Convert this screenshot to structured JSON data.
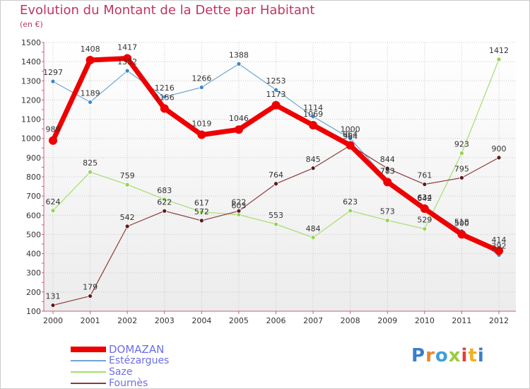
{
  "page": {
    "title": "Evolution du Montant de la Dette par Habitant",
    "subtitle": "(en €)",
    "logo": "Proxiti"
  },
  "colors": {
    "title": "#c0365f",
    "legend_text": "#6d6ee7",
    "axis": "#cc5b7c",
    "grid": "#c8c8c8",
    "plot_bg_top": "#ffffff",
    "plot_bg_bottom": "#ececec"
  },
  "chart_data": {
    "type": "line",
    "x": [
      "2000",
      "2001",
      "2002",
      "2003",
      "2004",
      "2005",
      "2006",
      "2007",
      "2008",
      "2009",
      "2010",
      "2011",
      "2012"
    ],
    "ylim": [
      100,
      1500
    ],
    "yticks": [
      100,
      200,
      300,
      400,
      500,
      600,
      700,
      800,
      900,
      1000,
      1100,
      1200,
      1300,
      1400,
      1500
    ],
    "grid": true,
    "legend_position": "bottom-left",
    "series": [
      {
        "name": "Estézargues",
        "color": "#6fa6d4",
        "marker": "#3d87c9",
        "width": 1.2,
        "radius": 3,
        "values": [
          1297,
          1189,
          1352,
          1216,
          1266,
          1388,
          1253,
          1114,
          1000,
          783,
          642,
          518,
          392
        ],
        "labels": [
          "1297",
          "1189",
          "1352",
          "1216",
          "1266",
          "1388",
          "1253",
          "1114",
          "1000",
          "783",
          "642",
          "518",
          "392"
        ]
      },
      {
        "name": "Saze",
        "color": "#a4de6f",
        "marker": "#8fd64f",
        "width": 1.2,
        "radius": 3,
        "values": [
          624,
          825,
          759,
          683,
          617,
          603,
          553,
          484,
          623,
          573,
          529,
          923,
          1412
        ],
        "labels": [
          "624",
          "825",
          "759",
          "683",
          "617",
          "603",
          "553",
          "484",
          "623",
          "573",
          "529",
          "923",
          "1412"
        ]
      },
      {
        "name": "Fournès",
        "color": "#8b3a3a",
        "marker": "#5e1a1a",
        "width": 1.2,
        "radius": 3,
        "values": [
          131,
          179,
          542,
          622,
          572,
          622,
          764,
          845,
          964,
          844,
          761,
          795,
          900
        ],
        "labels": [
          "131",
          "179",
          "542",
          "622",
          "572",
          "622",
          "764",
          "845",
          "964",
          "844",
          "761",
          "795",
          "900"
        ]
      },
      {
        "name": "DOMAZAN",
        "color": "#ee0000",
        "marker": "#ee0000",
        "width": 7,
        "radius": 6,
        "values": [
          989,
          1408,
          1417,
          1156,
          1019,
          1046,
          1173,
          1069,
          964,
          773,
          634,
          500,
          414
        ],
        "labels": [
          "989",
          "1408",
          "1417",
          "1156",
          "1019",
          "1046",
          "1173",
          "1069",
          "964",
          "773",
          "634",
          "500",
          "414"
        ]
      }
    ],
    "legend": [
      "DOMAZAN",
      "Estézargues",
      "Saze",
      "Fournès"
    ]
  }
}
